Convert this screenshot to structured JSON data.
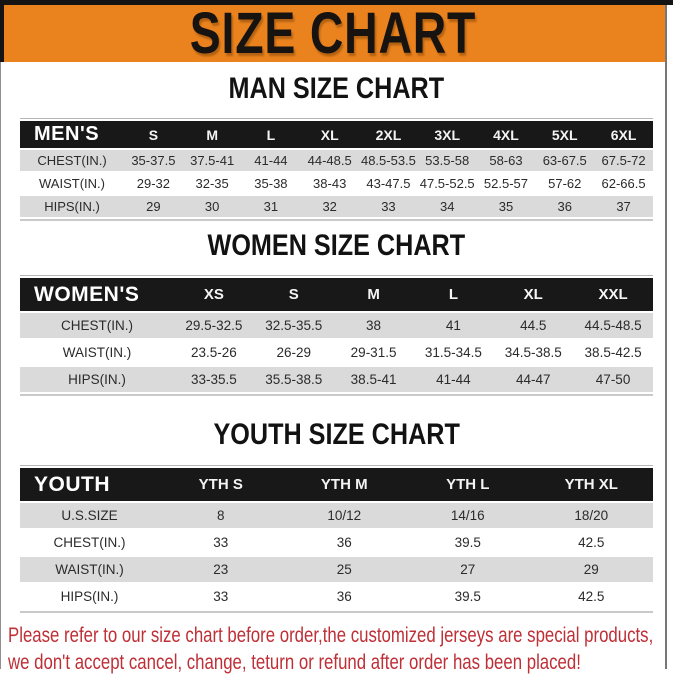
{
  "title_banner": {
    "label": "SIZE CHART"
  },
  "sections": {
    "men": {
      "heading": "MAN SIZE CHART",
      "table": {
        "header": [
          "MEN'S",
          "S",
          "M",
          "L",
          "XL",
          "2XL",
          "3XL",
          "4XL",
          "5XL",
          "6XL"
        ],
        "rows": [
          [
            "CHEST(IN.)",
            "35-37.5",
            "37.5-41",
            "41-44",
            "44-48.5",
            "48.5-53.5",
            "53.5-58",
            "58-63",
            "63-67.5",
            "67.5-72"
          ],
          [
            "WAIST(IN.)",
            "29-32",
            "32-35",
            "35-38",
            "38-43",
            "43-47.5",
            "47.5-52.5",
            "52.5-57",
            "57-62",
            "62-66.5"
          ],
          [
            "HIPS(IN.)",
            "29",
            "30",
            "31",
            "32",
            "33",
            "34",
            "35",
            "36",
            "37"
          ]
        ]
      }
    },
    "women": {
      "heading": "WOMEN SIZE CHART",
      "table": {
        "header": [
          "WOMEN'S",
          "XS",
          "S",
          "M",
          "L",
          "XL",
          "XXL"
        ],
        "rows": [
          [
            "CHEST(IN.)",
            "29.5-32.5",
            "32.5-35.5",
            "38",
            "41",
            "44.5",
            "44.5-48.5"
          ],
          [
            "WAIST(IN.)",
            "23.5-26",
            "26-29",
            "29-31.5",
            "31.5-34.5",
            "34.5-38.5",
            "38.5-42.5"
          ],
          [
            "HIPS(IN.)",
            "33-35.5",
            "35.5-38.5",
            "38.5-41",
            "41-44",
            "44-47",
            "47-50"
          ]
        ]
      }
    },
    "youth": {
      "heading": "YOUTH SIZE CHART",
      "table": {
        "header": [
          "YOUTH",
          "YTH S",
          "YTH M",
          "YTH L",
          "YTH XL"
        ],
        "rows": [
          [
            "U.S.SIZE",
            "8",
            "10/12",
            "14/16",
            "18/20"
          ],
          [
            "CHEST(IN.)",
            "33",
            "36",
            "39.5",
            "42.5"
          ],
          [
            "WAIST(IN.)",
            "23",
            "25",
            "27",
            "29"
          ],
          [
            "HIPS(IN.)",
            "33",
            "36",
            "39.5",
            "42.5"
          ]
        ]
      }
    }
  },
  "footer": {
    "line1": "Please refer to our size chart before order,the customized jerseys are special products,",
    "line2": "we don't accept cancel, change, teturn or refund after order has been placed!"
  },
  "colors": {
    "banner_orange": "#EA831E",
    "header_black": "#181818",
    "row_gray": "#DADADA",
    "footer_red": "#BE2F36"
  }
}
